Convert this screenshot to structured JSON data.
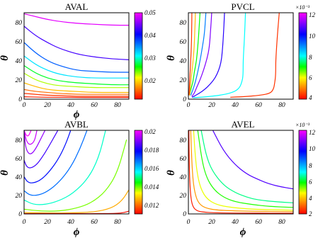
{
  "chart_data": [
    {
      "type": "contour",
      "title": "AVAL",
      "xlabel": "ϕ",
      "ylabel": "θ",
      "xlim": [
        0,
        90
      ],
      "ylim": [
        0,
        90
      ],
      "x_ticks": [
        "0",
        "20",
        "40",
        "60",
        "80"
      ],
      "y_ticks": [
        "0",
        "20",
        "40",
        "60",
        "80"
      ],
      "colorbar": {
        "min": 0.012,
        "max": 0.05,
        "ticks": [
          "0.05",
          "0.04",
          "0.03",
          "0.02"
        ],
        "tick_values": [
          0.05,
          0.04,
          0.03,
          0.02
        ],
        "multiplier": ""
      },
      "contours": [
        {
          "level": 0.049,
          "x": [
            0,
            10,
            20,
            30,
            45,
            60,
            75,
            90
          ],
          "y": [
            89,
            86,
            83,
            81,
            79,
            78,
            77,
            77
          ]
        },
        {
          "level": 0.043,
          "x": [
            0,
            10,
            20,
            30,
            45,
            60,
            75,
            90
          ],
          "y": [
            76,
            66,
            59,
            53,
            47,
            44,
            42,
            41
          ]
        },
        {
          "level": 0.037,
          "x": [
            0,
            10,
            20,
            30,
            45,
            60,
            75,
            90
          ],
          "y": [
            59,
            48,
            40,
            35,
            30,
            29,
            28,
            28
          ]
        },
        {
          "level": 0.032,
          "x": [
            0,
            10,
            20,
            30,
            45,
            60,
            75,
            90
          ],
          "y": [
            45,
            36,
            30,
            26,
            23,
            22,
            22,
            22
          ]
        },
        {
          "level": 0.027,
          "x": [
            0,
            10,
            20,
            30,
            45,
            60,
            75,
            90
          ],
          "y": [
            35,
            27,
            22,
            19,
            17,
            16,
            15,
            15
          ]
        },
        {
          "level": 0.023,
          "x": [
            0,
            10,
            20,
            30,
            45,
            60,
            75,
            90
          ],
          "y": [
            27,
            20,
            16,
            14,
            13,
            12,
            12,
            12
          ]
        },
        {
          "level": 0.019,
          "x": [
            0,
            10,
            20,
            30,
            45,
            60,
            75,
            90
          ],
          "y": [
            17,
            13,
            10,
            9,
            8,
            7,
            7,
            7
          ]
        },
        {
          "level": 0.016,
          "x": [
            0,
            10,
            20,
            30,
            45,
            60,
            75,
            90
          ],
          "y": [
            10,
            8,
            7,
            6,
            5,
            5,
            5,
            5
          ]
        },
        {
          "level": 0.014,
          "x": [
            0,
            10,
            20,
            30,
            45,
            60,
            75,
            90
          ],
          "y": [
            6,
            5,
            4,
            4,
            3,
            3,
            3,
            3
          ]
        },
        {
          "level": 0.013,
          "x": [
            0,
            10,
            20,
            30,
            45,
            60,
            75,
            90
          ],
          "y": [
            2.5,
            2.2,
            2,
            2,
            1.8,
            1.8,
            1.8,
            1.8
          ]
        }
      ]
    },
    {
      "type": "contour",
      "title": "PVCL",
      "xlabel": "",
      "ylabel": "",
      "xlim": [
        0,
        90
      ],
      "ylim": [
        0,
        90
      ],
      "x_ticks": [
        "0",
        "20",
        "40",
        "60",
        "80"
      ],
      "y_ticks": [
        "0",
        "20",
        "40",
        "60",
        "80"
      ],
      "colorbar": {
        "min": 4,
        "max": 12,
        "ticks": [
          "12",
          "10",
          "8",
          "6",
          "4"
        ],
        "tick_values": [
          12,
          10,
          8,
          6,
          4
        ],
        "multiplier": "×10⁻³"
      },
      "contours": [
        {
          "level": 4.4,
          "x": [
            78,
            76,
            75,
            75,
            74,
            73,
            70,
            62,
            46,
            36
          ],
          "y": [
            90,
            60,
            40,
            25,
            16,
            10,
            6,
            4,
            2.5,
            2
          ]
        },
        {
          "level": 8.0,
          "x": [
            49,
            48,
            47,
            47,
            46,
            44,
            40,
            32,
            20,
            10,
            4
          ],
          "y": [
            90,
            60,
            40,
            25,
            18,
            12,
            8,
            5,
            3,
            2,
            1.5
          ]
        },
        {
          "level": 10.3,
          "x": [
            31,
            30,
            29,
            28,
            26,
            23,
            19,
            14,
            9,
            5,
            3
          ],
          "y": [
            90,
            64,
            48,
            38,
            30,
            22,
            16,
            10,
            6,
            3,
            2
          ]
        },
        {
          "level": 11.0,
          "x": [
            20,
            19,
            18,
            16,
            13,
            10,
            7,
            5,
            3
          ],
          "y": [
            90,
            70,
            54,
            42,
            30,
            20,
            12,
            6,
            3
          ]
        },
        {
          "level": 9.0,
          "x": [
            15,
            14,
            12,
            10,
            8,
            6,
            4,
            2
          ],
          "y": [
            90,
            70,
            54,
            40,
            28,
            18,
            10,
            4
          ]
        },
        {
          "level": 7.0,
          "x": [
            10,
            9,
            8,
            7,
            5,
            4,
            2,
            1
          ],
          "y": [
            90,
            70,
            54,
            40,
            28,
            18,
            10,
            4
          ]
        },
        {
          "level": 5.5,
          "x": [
            6,
            5.5,
            5,
            4,
            3,
            2,
            1.5,
            1
          ],
          "y": [
            90,
            70,
            54,
            40,
            28,
            18,
            10,
            4
          ]
        },
        {
          "level": 4.4,
          "x": [
            3,
            2.8,
            2.5,
            2,
            1.5,
            1,
            0.8,
            0.5
          ],
          "y": [
            90,
            70,
            54,
            40,
            28,
            18,
            10,
            4
          ]
        }
      ]
    },
    {
      "type": "contour",
      "title": "AVBL",
      "xlabel": "ϕ",
      "ylabel": "θ",
      "xlim": [
        0,
        90
      ],
      "ylim": [
        0,
        90
      ],
      "x_ticks": [
        "0",
        "20",
        "40",
        "60",
        "80"
      ],
      "y_ticks": [
        "0",
        "20",
        "40",
        "60",
        "80"
      ],
      "colorbar": {
        "min": 0.0105,
        "max": 0.02,
        "ticks": [
          "0.02",
          "0.018",
          "0.016",
          "0.014",
          "0.012"
        ],
        "tick_values": [
          0.02,
          0.018,
          0.016,
          0.014,
          0.012
        ],
        "multiplier": ""
      },
      "contours": [
        {
          "level": 0.02,
          "x": [
            0,
            2,
            4,
            6
          ],
          "y": [
            90,
            84,
            84,
            90
          ]
        },
        {
          "level": 0.0195,
          "x": [
            0,
            2,
            5,
            9,
            11
          ],
          "y": [
            90,
            78,
            74,
            78,
            90
          ]
        },
        {
          "level": 0.019,
          "x": [
            0,
            1,
            3,
            6,
            10,
            14,
            18
          ],
          "y": [
            90,
            74,
            66,
            64,
            70,
            80,
            90
          ]
        },
        {
          "level": 0.0182,
          "x": [
            0,
            2,
            5,
            10,
            15,
            20,
            25,
            29
          ],
          "y": [
            58,
            51,
            49,
            52,
            60,
            70,
            81,
            90
          ]
        },
        {
          "level": 0.0175,
          "x": [
            0,
            3,
            8,
            15,
            22,
            30,
            36,
            40
          ],
          "y": [
            40,
            34,
            33,
            37,
            46,
            60,
            76,
            90
          ]
        },
        {
          "level": 0.0166,
          "x": [
            0,
            5,
            12,
            20,
            30,
            40,
            48,
            54
          ],
          "y": [
            25,
            20,
            20,
            24,
            34,
            50,
            70,
            90
          ]
        },
        {
          "level": 0.015,
          "x": [
            0,
            8,
            18,
            30,
            42,
            55,
            64,
            70
          ],
          "y": [
            15,
            10,
            10,
            14,
            22,
            38,
            60,
            90
          ]
        },
        {
          "level": 0.0135,
          "x": [
            0,
            15,
            30,
            45,
            58,
            70,
            80,
            88
          ],
          "y": [
            5,
            3,
            3,
            6,
            12,
            24,
            44,
            80
          ]
        },
        {
          "level": 0.0121,
          "x": [
            0,
            20,
            40,
            60,
            75,
            84,
            90
          ],
          "y": [
            1.5,
            1,
            1,
            2,
            6,
            14,
            26
          ]
        },
        {
          "level": 0.0106,
          "x": [
            0,
            30,
            60,
            80,
            86,
            90
          ],
          "y": [
            0.3,
            0.3,
            0.3,
            0.5,
            1.5,
            3
          ]
        }
      ]
    },
    {
      "type": "contour",
      "title": "AVEL",
      "xlabel": "ϕ",
      "ylabel": "",
      "xlim": [
        0,
        90
      ],
      "ylim": [
        0,
        90
      ],
      "x_ticks": [
        "0",
        "20",
        "40",
        "60",
        "80"
      ],
      "y_ticks": [
        "0",
        "20",
        "40",
        "60",
        "80"
      ],
      "colorbar": {
        "min": 2,
        "max": 12,
        "ticks": [
          "12",
          "10",
          "8",
          "6",
          "4",
          "2"
        ],
        "tick_values": [
          12,
          10,
          8,
          6,
          4,
          2
        ],
        "multiplier": "×10⁻³"
      },
      "contours": [
        {
          "level": 10.3,
          "x": [
            21,
            30,
            40,
            50,
            60,
            70,
            80,
            90
          ],
          "y": [
            90,
            68,
            53,
            43,
            37,
            32,
            29,
            27
          ]
        },
        {
          "level": 6.4,
          "x": [
            11,
            15,
            20,
            30,
            40,
            50,
            60,
            75,
            90
          ],
          "y": [
            90,
            64,
            47,
            31,
            23,
            18,
            15,
            13,
            12
          ]
        },
        {
          "level": 5.6,
          "x": [
            8,
            12,
            16,
            22,
            30,
            40,
            55,
            70,
            90
          ],
          "y": [
            90,
            55,
            38,
            26,
            18,
            13,
            10,
            8,
            7
          ]
        },
        {
          "level": 4.6,
          "x": [
            4.5,
            6,
            8,
            11,
            16,
            24,
            36,
            55,
            90
          ],
          "y": [
            90,
            60,
            40,
            26,
            16,
            10,
            7,
            5,
            4
          ]
        },
        {
          "level": 3.5,
          "x": [
            2,
            3,
            4,
            6,
            9,
            15,
            25,
            45,
            90
          ],
          "y": [
            90,
            55,
            35,
            20,
            11,
            6,
            4,
            3,
            2.5
          ]
        },
        {
          "level": 2.3,
          "x": [
            0.4,
            0.8,
            1.5,
            3,
            6,
            12,
            30,
            90
          ],
          "y": [
            90,
            50,
            25,
            10,
            4,
            1.8,
            0.9,
            0.8
          ]
        }
      ]
    }
  ]
}
